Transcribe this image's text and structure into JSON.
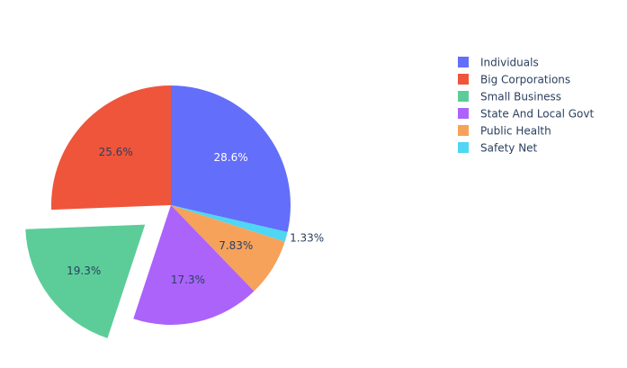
{
  "chart_data": {
    "type": "pie",
    "title": "",
    "direction": "clockwise",
    "start_angle_deg": 0,
    "legend_position": "top-right",
    "slices": [
      {
        "name": "Individuals",
        "percent": 28.6,
        "label": "28.6%",
        "color": "#636efa",
        "label_color": "#ffffff",
        "label_position": "inside",
        "pulled": false
      },
      {
        "name": "Safety Net",
        "percent": 1.33,
        "label": "1.33%",
        "color": "#4fd6f2",
        "label_color": "#2a3f5f",
        "label_position": "outside",
        "pulled": false
      },
      {
        "name": "Public Health",
        "percent": 7.83,
        "label": "7.83%",
        "color": "#f6a25b",
        "label_color": "#2a3f5f",
        "label_position": "inside",
        "pulled": false
      },
      {
        "name": "State And Local Govt",
        "percent": 17.3,
        "label": "17.3%",
        "color": "#ab63fa",
        "label_color": "#2a3f5f",
        "label_position": "inside",
        "pulled": false
      },
      {
        "name": "Small Business",
        "percent": 19.3,
        "label": "19.3%",
        "color": "#5ccd98",
        "label_color": "#2a3f5f",
        "label_position": "inside",
        "pulled": true
      },
      {
        "name": "Big Corporations",
        "percent": 25.6,
        "label": "25.6%",
        "color": "#ef553b",
        "label_color": "#2a3f5f",
        "label_position": "inside",
        "pulled": false
      }
    ],
    "legend": [
      {
        "name": "Individuals",
        "color": "#636efa"
      },
      {
        "name": "Big Corporations",
        "color": "#ef553b"
      },
      {
        "name": "Small Business",
        "color": "#5ccd98"
      },
      {
        "name": "State And Local Govt",
        "color": "#ab63fa"
      },
      {
        "name": "Public Health",
        "color": "#f6a25b"
      },
      {
        "name": "Safety Net",
        "color": "#4fd6f2"
      }
    ]
  }
}
